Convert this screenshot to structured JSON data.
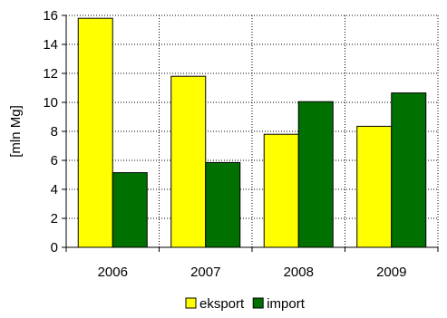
{
  "chart_data": {
    "type": "bar",
    "title": "",
    "xlabel": "",
    "ylabel": "[mln Mg]",
    "categories": [
      "2006",
      "2007",
      "2008",
      "2009"
    ],
    "series": [
      {
        "name": "eksport",
        "color": "#ffff00",
        "values": [
          15.8,
          11.8,
          7.8,
          8.35
        ]
      },
      {
        "name": "import",
        "color": "#007000",
        "values": [
          5.15,
          5.85,
          10.05,
          10.65
        ]
      }
    ],
    "ylim": [
      0,
      16
    ],
    "yticks": [
      0,
      2,
      4,
      6,
      8,
      10,
      12,
      14,
      16
    ],
    "grid": true,
    "legend_position": "bottom"
  }
}
